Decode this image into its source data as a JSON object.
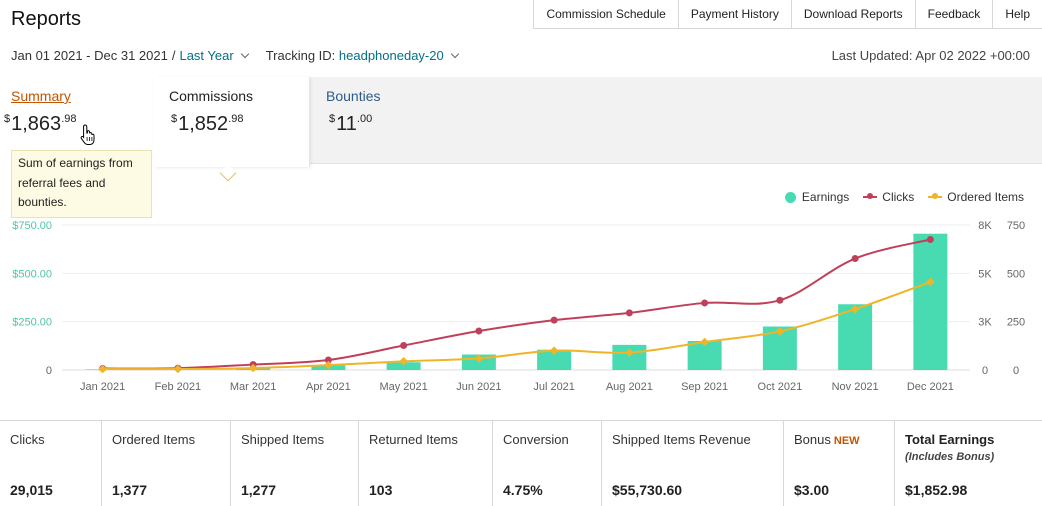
{
  "page": {
    "title": "Reports",
    "nav_tabs": [
      "Commission Schedule",
      "Payment History",
      "Download Reports",
      "Feedback",
      "Help"
    ]
  },
  "filters": {
    "date_range": "Jan 01 2021 - Dec 31 2021",
    "separator": "/",
    "period": "Last Year",
    "tracking_label": "Tracking ID:",
    "tracking_id": "headphoneday-20",
    "last_updated": "Last Updated: Apr 02 2022 +00:00"
  },
  "summary_tabs": {
    "summary": {
      "label": "Summary",
      "currency": "$",
      "whole": "1,863",
      "cents": ".98"
    },
    "commissions": {
      "label": "Commissions",
      "currency": "$",
      "whole": "1,852",
      "cents": ".98"
    },
    "bounties": {
      "label": "Bounties",
      "currency": "$",
      "whole": "11",
      "cents": ".00"
    }
  },
  "tooltip": {
    "text": "Sum of earnings from referral fees and bounties."
  },
  "icons": {
    "cursor": "hand-pointer-icon"
  },
  "colors": {
    "earnings": "#48dbb1",
    "clicks": "#c0405a",
    "ordered_items": "#f0b429",
    "accent_link": "#007185",
    "summary_active": "#c45500"
  },
  "chart_data": {
    "type": "bar",
    "categories": [
      "Jan 2021",
      "Feb 2021",
      "Mar 2021",
      "Apr 2021",
      "May 2021",
      "Jun 2021",
      "Jul 2021",
      "Aug 2021",
      "Sep 2021",
      "Oct 2021",
      "Nov 2021",
      "Dec 2021"
    ],
    "legend": [
      "Earnings",
      "Clicks",
      "Ordered Items"
    ],
    "legend_position": "top-right",
    "left_axis": {
      "ticks": [
        "$750.00",
        "$500.00",
        "$250.00",
        "0"
      ],
      "range": [
        0,
        750
      ]
    },
    "right_axis_clicks": {
      "ticks": [
        "8K",
        "5K",
        "3K",
        "0"
      ],
      "range": [
        0,
        8000
      ]
    },
    "right_axis_items": {
      "ticks": [
        "750",
        "500",
        "250",
        "0"
      ],
      "range": [
        0,
        750
      ]
    },
    "series": [
      {
        "name": "Earnings",
        "type": "bar",
        "axis": "left",
        "values": [
          3,
          4,
          8,
          25,
          40,
          80,
          105,
          130,
          150,
          225,
          340,
          705
        ]
      },
      {
        "name": "Clicks",
        "type": "line",
        "axis": "clicks",
        "values": [
          80,
          100,
          300,
          550,
          1350,
          2150,
          2750,
          3150,
          3700,
          3850,
          6150,
          7200
        ]
      },
      {
        "name": "Ordered Items",
        "type": "line",
        "axis": "items",
        "values": [
          5,
          5,
          10,
          25,
          45,
          60,
          100,
          90,
          145,
          200,
          315,
          455
        ]
      }
    ],
    "grid": true
  },
  "stats": [
    {
      "label": "Clicks",
      "value": "29,015"
    },
    {
      "label": "Ordered Items",
      "value": "1,377"
    },
    {
      "label": "Shipped Items",
      "value": "1,277"
    },
    {
      "label": "Returned Items",
      "value": "103"
    },
    {
      "label": "Conversion",
      "value": "4.75%"
    },
    {
      "label": "Shipped Items Revenue",
      "value": "$55,730.60"
    },
    {
      "label": "Bonus",
      "badge": "NEW",
      "value": "$3.00"
    },
    {
      "label": "Total Earnings",
      "sublabel": "(Includes Bonus)",
      "value": "$1,852.98"
    }
  ]
}
